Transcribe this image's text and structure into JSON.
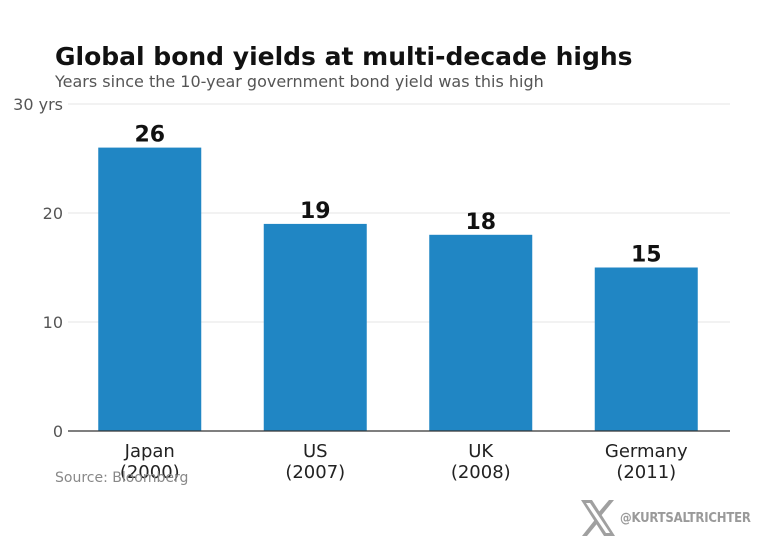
{
  "chart_data": {
    "type": "bar",
    "title": "Global bond yields at multi-decade highs",
    "subtitle": "Years since the 10-year government bond yield was this high",
    "categories": [
      {
        "line1": "Japan",
        "line2": "(2000)"
      },
      {
        "line1": "US",
        "line2": "(2007)"
      },
      {
        "line1": "UK",
        "line2": "(2008)"
      },
      {
        "line1": "Germany",
        "line2": "(2011)"
      }
    ],
    "values": [
      26,
      19,
      18,
      15
    ],
    "ylim": [
      0,
      30
    ],
    "yticks": [
      {
        "value": 0,
        "label": "0"
      },
      {
        "value": 10,
        "label": "10"
      },
      {
        "value": 20,
        "label": "20"
      },
      {
        "value": 30,
        "label": "30 yrs"
      }
    ],
    "grid": true,
    "bar_color": "#2086c4",
    "source": "Source: Bloomberg"
  },
  "watermark": {
    "icon": "x-logo-icon",
    "handle": "@KURTSALTRICHTER"
  }
}
